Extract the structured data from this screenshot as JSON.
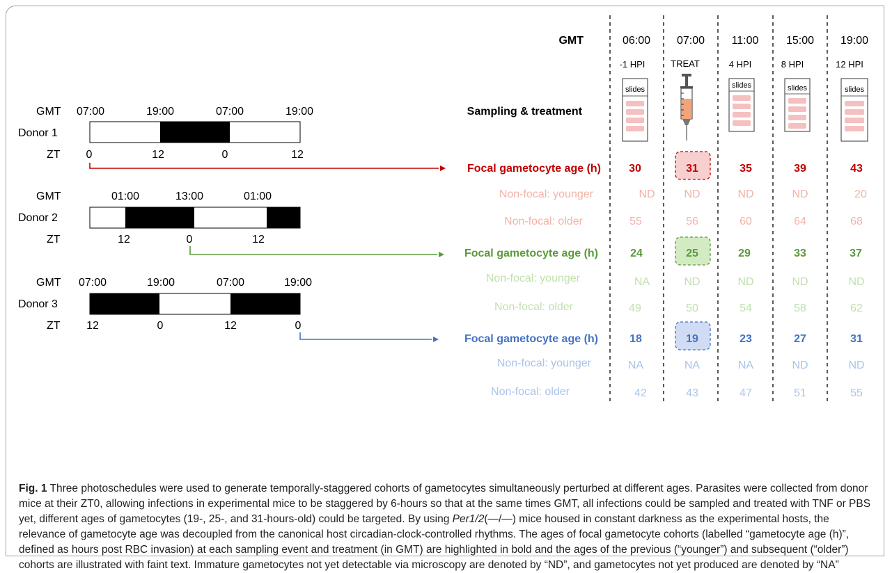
{
  "colors": {
    "red": "#c00000",
    "red_faint": "#f2b3a8",
    "green": "#5a9a3a",
    "green_faint": "#c1e0ae",
    "blue": "#4472c4",
    "blue_faint": "#a9c4eb",
    "red_box_fill": "#f8cfcf",
    "green_box_fill": "#d3ebc3",
    "blue_box_fill": "#cfdcf3"
  },
  "schedule": {
    "gmt_label": "GMT",
    "zt_label": "ZT",
    "donors": [
      {
        "name": "Donor 1",
        "gmt_ticks": [
          "07:00",
          "19:00",
          "07:00",
          "19:00"
        ],
        "zt_ticks": [
          "0",
          "12",
          "0",
          "12"
        ]
      },
      {
        "name": "Donor 2",
        "gmt_ticks": [
          "01:00",
          "13:00",
          "01:00"
        ],
        "zt_ticks": [
          "12",
          "0",
          "12"
        ]
      },
      {
        "name": "Donor 3",
        "gmt_ticks": [
          "07:00",
          "19:00",
          "07:00",
          "19:00"
        ],
        "zt_ticks": [
          "12",
          "0",
          "12",
          "0"
        ]
      }
    ]
  },
  "table": {
    "gmt_label": "GMT",
    "times": [
      "06:00",
      "07:00",
      "11:00",
      "15:00",
      "19:00"
    ],
    "hpi": [
      "-1 HPI",
      "TREAT",
      "4 HPI",
      "8 HPI",
      "12 HPI"
    ],
    "slides_label": "slides",
    "sampling_label": "Sampling & treatment",
    "groups": [
      {
        "focal_label": "Focal gametocyte age (h)",
        "focal": [
          "30",
          "31",
          "35",
          "39",
          "43"
        ],
        "younger_label": "Non-focal: younger",
        "younger": [
          "ND",
          "ND",
          "ND",
          "ND",
          "20"
        ],
        "older_label": "Non-focal: older",
        "older": [
          "55",
          "56",
          "60",
          "64",
          "68"
        ]
      },
      {
        "focal_label": "Focal gametocyte age (h)",
        "focal": [
          "24",
          "25",
          "29",
          "33",
          "37"
        ],
        "younger_label": "Non-focal: younger",
        "younger": [
          "NA",
          "ND",
          "ND",
          "ND",
          "ND"
        ],
        "older_label": "Non-focal: older",
        "older": [
          "49",
          "50",
          "54",
          "58",
          "62"
        ]
      },
      {
        "focal_label": "Focal gametocyte age (h)",
        "focal": [
          "18",
          "19",
          "23",
          "27",
          "31"
        ],
        "younger_label": "Non-focal: younger",
        "younger": [
          "NA",
          "NA",
          "NA",
          "ND",
          "ND"
        ],
        "older_label": "Non-focal: older",
        "older": [
          "42",
          "43",
          "47",
          "51",
          "55"
        ]
      }
    ]
  },
  "caption": {
    "label": "Fig. 1",
    "p1": "Three photoschedules were used to generate temporally-staggered cohorts of gametocytes simultaneously perturbed at different ages. Parasites were collected from donor mice at their ZT0, allowing infections in experimental mice to be staggered by 6-hours so that at the same times GMT, all infections could be sampled and treated with TNF or PBS yet, different ages of gametocytes (19-, 25-, and 31-hours-old) could be targeted. By using ",
    "italic": "Per1/2",
    "p2": "(—/—) mice housed in constant darkness as the experimental hosts, the relevance of gametocyte age was decoupled from the canonical host circadian-clock-controlled rhythms. The ages of focal gametocyte cohorts (labelled “gametocyte age (h)”, defined as hours post RBC invasion) at each sampling event and treatment (in GMT) are highlighted in bold and the ages of the previous (“younger”) and subsequent (“older”) cohorts are illustrated with faint text. Immature gametocytes not yet detectable via microscopy are denoted by “ND”, and gametocytes not yet produced are denoted by “NA”"
  }
}
